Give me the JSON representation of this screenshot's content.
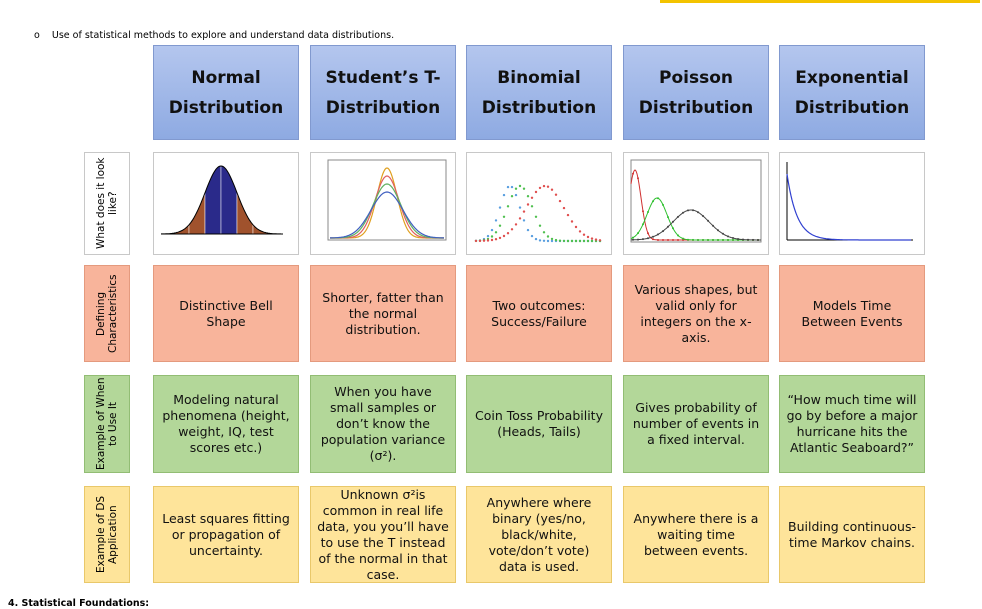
{
  "intro_bullet": "Use of statistical methods to explore and understand data distributions.",
  "table": {
    "columns": [
      [
        "Normal",
        "Distribution"
      ],
      [
        "Student’s T-",
        "Distribution"
      ],
      [
        "Binomial",
        "Distribution"
      ],
      [
        "Poisson",
        "Distribution"
      ],
      [
        "Exponential",
        "Distribution"
      ]
    ],
    "rows": [
      {
        "label": "What does it look like?"
      },
      {
        "label": "Defining Characteristics",
        "cells": [
          "Distinctive Bell Shape",
          "Shorter, fatter than the normal distribution.",
          "Two outcomes: Success/Failure",
          "Various shapes, but valid only for integers on the x-axis.",
          "Models Time Between Events"
        ]
      },
      {
        "label": "Example of When to Use It",
        "cells": [
          "Modeling natural phenomena (height, weight, IQ, test scores etc.)",
          "When you have small samples or don’t know the population variance (σ²).",
          "Coin Toss Probability (Heads, Tails)",
          "Gives probability of number of events in a fixed interval.",
          "“How much time will go by before a major hurricane hits the Atlantic Seaboard?”"
        ]
      },
      {
        "label": "Example of DS Application",
        "cells": [
          "Least squares fitting or propagation of uncertainty.",
          "Unknown σ²is common in real life data, you you’ll have to use the T instead of the normal in that case.",
          "Anywhere where binary (yes/no, black/white, vote/don’t vote) data is used.",
          "Anywhere there is a waiting time between events.",
          "Building continuous-time Markov chains."
        ]
      }
    ]
  },
  "footer": "4. Statistical Foundations:"
}
